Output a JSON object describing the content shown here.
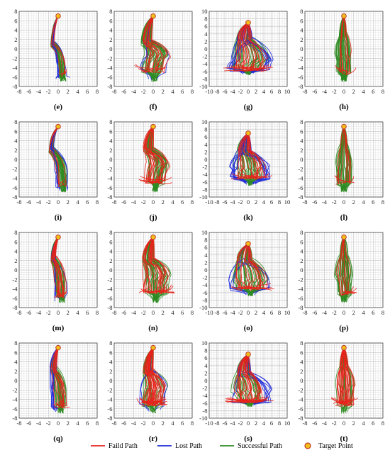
{
  "legend": [
    {
      "label": "Faild Path",
      "color": "#e8221b",
      "kind": "line"
    },
    {
      "label": "Lost Path",
      "color": "#1f2ad8",
      "kind": "line"
    },
    {
      "label": "Successful Path",
      "color": "#2e8b22",
      "kind": "line"
    },
    {
      "label": "Target Point",
      "color": "#f2c019",
      "edge": "#c0392b",
      "kind": "marker"
    }
  ],
  "chart_data": {
    "type": "line",
    "grid": true,
    "target": {
      "x": 0,
      "y": 7
    },
    "panels": [
      {
        "caption": "(e)",
        "xlim": [
          -8,
          8
        ],
        "ylim": [
          -8,
          8
        ],
        "xticks": [
          -8,
          -6,
          -4,
          -2,
          0,
          2,
          4,
          6,
          8
        ],
        "yticks": [
          -8,
          -6,
          -4,
          -2,
          0,
          2,
          4,
          6,
          8
        ],
        "shape": [
          -1.2,
          0.6,
          1.2,
          0.6,
          -2.5,
          0.8,
          -5.6,
          1.0,
          -7.0
        ],
        "spread": 0.7,
        "counts": {
          "green": 30,
          "red": 4,
          "blue": 7
        }
      },
      {
        "caption": "(f)",
        "xlim": [
          -8,
          8
        ],
        "ylim": [
          -8,
          8
        ],
        "xticks": [
          -8,
          -6,
          -4,
          -2,
          0,
          2,
          4,
          6,
          8
        ],
        "yticks": [
          -8,
          -6,
          -4,
          -2,
          0,
          2,
          4,
          6,
          8
        ],
        "shape": [
          -1.4,
          -0.8,
          1.4,
          0.8,
          -1.2,
          -0.2,
          -4.6,
          0.2,
          -7.0
        ],
        "spread": 2.3,
        "counts": {
          "green": 36,
          "red": 14,
          "blue": 3
        }
      },
      {
        "caption": "(g)",
        "xlim": [
          -10,
          10
        ],
        "ylim": [
          -10,
          10
        ],
        "xticks": [
          -10,
          -8,
          -6,
          -4,
          -2,
          0,
          2,
          4,
          6,
          8,
          10
        ],
        "yticks": [
          -10,
          -8,
          -6,
          -4,
          -2,
          0,
          2,
          4,
          6,
          8,
          10
        ],
        "shape": [
          -1.0,
          -3.0,
          2.5,
          1.0,
          -3.0,
          0.0,
          -5.5,
          0.0,
          -7.0
        ],
        "spread": 4.0,
        "counts": {
          "green": 34,
          "red": 18,
          "blue": 16
        }
      },
      {
        "caption": "(h)",
        "xlim": [
          -8,
          8
        ],
        "ylim": [
          -8,
          8
        ],
        "xticks": [
          -8,
          -6,
          -4,
          -2,
          0,
          2,
          4,
          6,
          8
        ],
        "yticks": [
          -8,
          -6,
          -4,
          -2,
          0,
          2,
          4,
          6,
          8
        ],
        "shape": [
          -0.2,
          0.0,
          3.0,
          0.0,
          -1.0,
          0.0,
          -5.0,
          0.0,
          -7.0
        ],
        "spread": 1.6,
        "counts": {
          "green": 40,
          "red": 8,
          "blue": 0
        }
      },
      {
        "caption": "(i)",
        "xlim": [
          -8,
          8
        ],
        "ylim": [
          -8,
          8
        ],
        "xticks": [
          -8,
          -6,
          -4,
          -2,
          0,
          2,
          4,
          6,
          8
        ],
        "yticks": [
          -8,
          -6,
          -4,
          -2,
          0,
          2,
          4,
          6,
          8
        ],
        "shape": [
          -1.4,
          0.6,
          2.2,
          0.6,
          -2.0,
          0.9,
          -5.4,
          1.0,
          -7.0
        ],
        "spread": 1.0,
        "counts": {
          "green": 30,
          "red": 4,
          "blue": 8
        }
      },
      {
        "caption": "(j)",
        "xlim": [
          -8,
          8
        ],
        "ylim": [
          -8,
          8
        ],
        "xticks": [
          -8,
          -6,
          -4,
          -2,
          0,
          2,
          4,
          6,
          8
        ],
        "yticks": [
          -8,
          -6,
          -4,
          -2,
          0,
          2,
          4,
          6,
          8
        ],
        "shape": [
          -1.0,
          -0.8,
          2.0,
          1.2,
          -1.0,
          0.4,
          -4.8,
          0.4,
          -7.0
        ],
        "spread": 2.2,
        "counts": {
          "green": 32,
          "red": 18,
          "blue": 0
        }
      },
      {
        "caption": "(k)",
        "xlim": [
          -10,
          10
        ],
        "ylim": [
          -10,
          10
        ],
        "xticks": [
          -10,
          -8,
          -6,
          -4,
          -2,
          0,
          2,
          4,
          6,
          8,
          10
        ],
        "yticks": [
          -10,
          -8,
          -6,
          -4,
          -2,
          0,
          2,
          4,
          6,
          8,
          10
        ],
        "shape": [
          -1.0,
          -2.5,
          2.0,
          0.5,
          -2.0,
          0.5,
          -5.0,
          0.5,
          -7.0
        ],
        "spread": 3.8,
        "counts": {
          "green": 30,
          "red": 16,
          "blue": 18
        }
      },
      {
        "caption": "(l)",
        "xlim": [
          -8,
          8
        ],
        "ylim": [
          -8,
          8
        ],
        "xticks": [
          -8,
          -6,
          -4,
          -2,
          0,
          2,
          4,
          6,
          8
        ],
        "yticks": [
          -8,
          -6,
          -4,
          -2,
          0,
          2,
          4,
          6,
          8
        ],
        "shape": [
          0.0,
          0.0,
          3.0,
          0.0,
          -1.0,
          0.0,
          -5.0,
          0.0,
          -7.0
        ],
        "spread": 1.5,
        "counts": {
          "green": 36,
          "red": 8,
          "blue": 0
        }
      },
      {
        "caption": "(m)",
        "xlim": [
          -8,
          8
        ],
        "ylim": [
          -8,
          8
        ],
        "xticks": [
          -8,
          -6,
          -4,
          -2,
          0,
          2,
          4,
          6,
          8
        ],
        "yticks": [
          -8,
          -6,
          -4,
          -2,
          0,
          2,
          4,
          6,
          8
        ],
        "shape": [
          -1.0,
          0.4,
          2.5,
          0.4,
          -2.0,
          0.6,
          -5.4,
          0.8,
          -7.0
        ],
        "spread": 1.0,
        "counts": {
          "green": 28,
          "red": 12,
          "blue": 4
        }
      },
      {
        "caption": "(n)",
        "xlim": [
          -8,
          8
        ],
        "ylim": [
          -8,
          8
        ],
        "xticks": [
          -8,
          -6,
          -4,
          -2,
          0,
          2,
          4,
          6,
          8
        ],
        "yticks": [
          -8,
          -6,
          -4,
          -2,
          0,
          2,
          4,
          6,
          8
        ],
        "shape": [
          -1.0,
          -1.0,
          2.0,
          0.8,
          -1.2,
          0.5,
          -4.6,
          0.5,
          -7.0
        ],
        "spread": 2.5,
        "counts": {
          "green": 34,
          "red": 20,
          "blue": 0
        }
      },
      {
        "caption": "(o)",
        "xlim": [
          -10,
          10
        ],
        "ylim": [
          -10,
          10
        ],
        "xticks": [
          -10,
          -8,
          -6,
          -4,
          -2,
          0,
          2,
          4,
          6,
          8,
          10
        ],
        "yticks": [
          -10,
          -8,
          -6,
          -4,
          -2,
          0,
          2,
          4,
          6,
          8,
          10
        ],
        "shape": [
          -1.0,
          -2.5,
          2.5,
          0.5,
          -2.5,
          0.5,
          -5.0,
          0.5,
          -7.0
        ],
        "spread": 4.0,
        "counts": {
          "green": 36,
          "red": 16,
          "blue": 6
        }
      },
      {
        "caption": "(p)",
        "xlim": [
          -8,
          8
        ],
        "ylim": [
          -8,
          8
        ],
        "xticks": [
          -8,
          -6,
          -4,
          -2,
          0,
          2,
          4,
          6,
          8
        ],
        "yticks": [
          -8,
          -6,
          -4,
          -2,
          0,
          2,
          4,
          6,
          8
        ],
        "shape": [
          0.0,
          -0.4,
          3.0,
          0.0,
          -1.0,
          0.2,
          -5.0,
          0.0,
          -7.0
        ],
        "spread": 1.7,
        "counts": {
          "green": 34,
          "red": 8,
          "blue": 0
        }
      },
      {
        "caption": "(q)",
        "xlim": [
          -8,
          8
        ],
        "ylim": [
          -8,
          8
        ],
        "xticks": [
          -8,
          -6,
          -4,
          -2,
          0,
          2,
          4,
          6,
          8
        ],
        "yticks": [
          -8,
          -6,
          -4,
          -2,
          0,
          2,
          4,
          6,
          8
        ],
        "shape": [
          -1.0,
          0.0,
          2.5,
          0.3,
          -2.0,
          0.5,
          -5.4,
          0.5,
          -7.0
        ],
        "spread": 1.4,
        "counts": {
          "green": 28,
          "red": 10,
          "blue": 8
        }
      },
      {
        "caption": "(r)",
        "xlim": [
          -8,
          8
        ],
        "ylim": [
          -8,
          8
        ],
        "xticks": [
          -8,
          -6,
          -4,
          -2,
          0,
          2,
          4,
          6,
          8
        ],
        "yticks": [
          -8,
          -6,
          -4,
          -2,
          0,
          2,
          4,
          6,
          8
        ],
        "shape": [
          -1.0,
          -1.0,
          2.0,
          0.5,
          -1.5,
          0.0,
          -5.0,
          0.0,
          -7.0
        ],
        "spread": 2.2,
        "counts": {
          "green": 20,
          "red": 30,
          "blue": 4
        }
      },
      {
        "caption": "(s)",
        "xlim": [
          -10,
          10
        ],
        "ylim": [
          -10,
          10
        ],
        "xticks": [
          -10,
          -8,
          -6,
          -4,
          -2,
          0,
          2,
          4,
          6,
          8,
          10
        ],
        "yticks": [
          -10,
          -8,
          -6,
          -4,
          -2,
          0,
          2,
          4,
          6,
          8,
          10
        ],
        "shape": [
          -1.0,
          -3.0,
          2.0,
          0.5,
          -2.5,
          0.5,
          -5.5,
          0.5,
          -7.0
        ],
        "spread": 4.0,
        "counts": {
          "green": 28,
          "red": 22,
          "blue": 10
        }
      },
      {
        "caption": "(t)",
        "xlim": [
          -8,
          8
        ],
        "ylim": [
          -8,
          8
        ],
        "xticks": [
          -8,
          -6,
          -4,
          -2,
          0,
          2,
          4,
          6,
          8
        ],
        "yticks": [
          -8,
          -6,
          -4,
          -2,
          0,
          2,
          4,
          6,
          8
        ],
        "shape": [
          0.0,
          0.0,
          3.0,
          0.2,
          -1.0,
          0.2,
          -5.0,
          0.0,
          -7.0
        ],
        "spread": 1.8,
        "counts": {
          "green": 18,
          "red": 24,
          "blue": 0
        }
      }
    ]
  }
}
